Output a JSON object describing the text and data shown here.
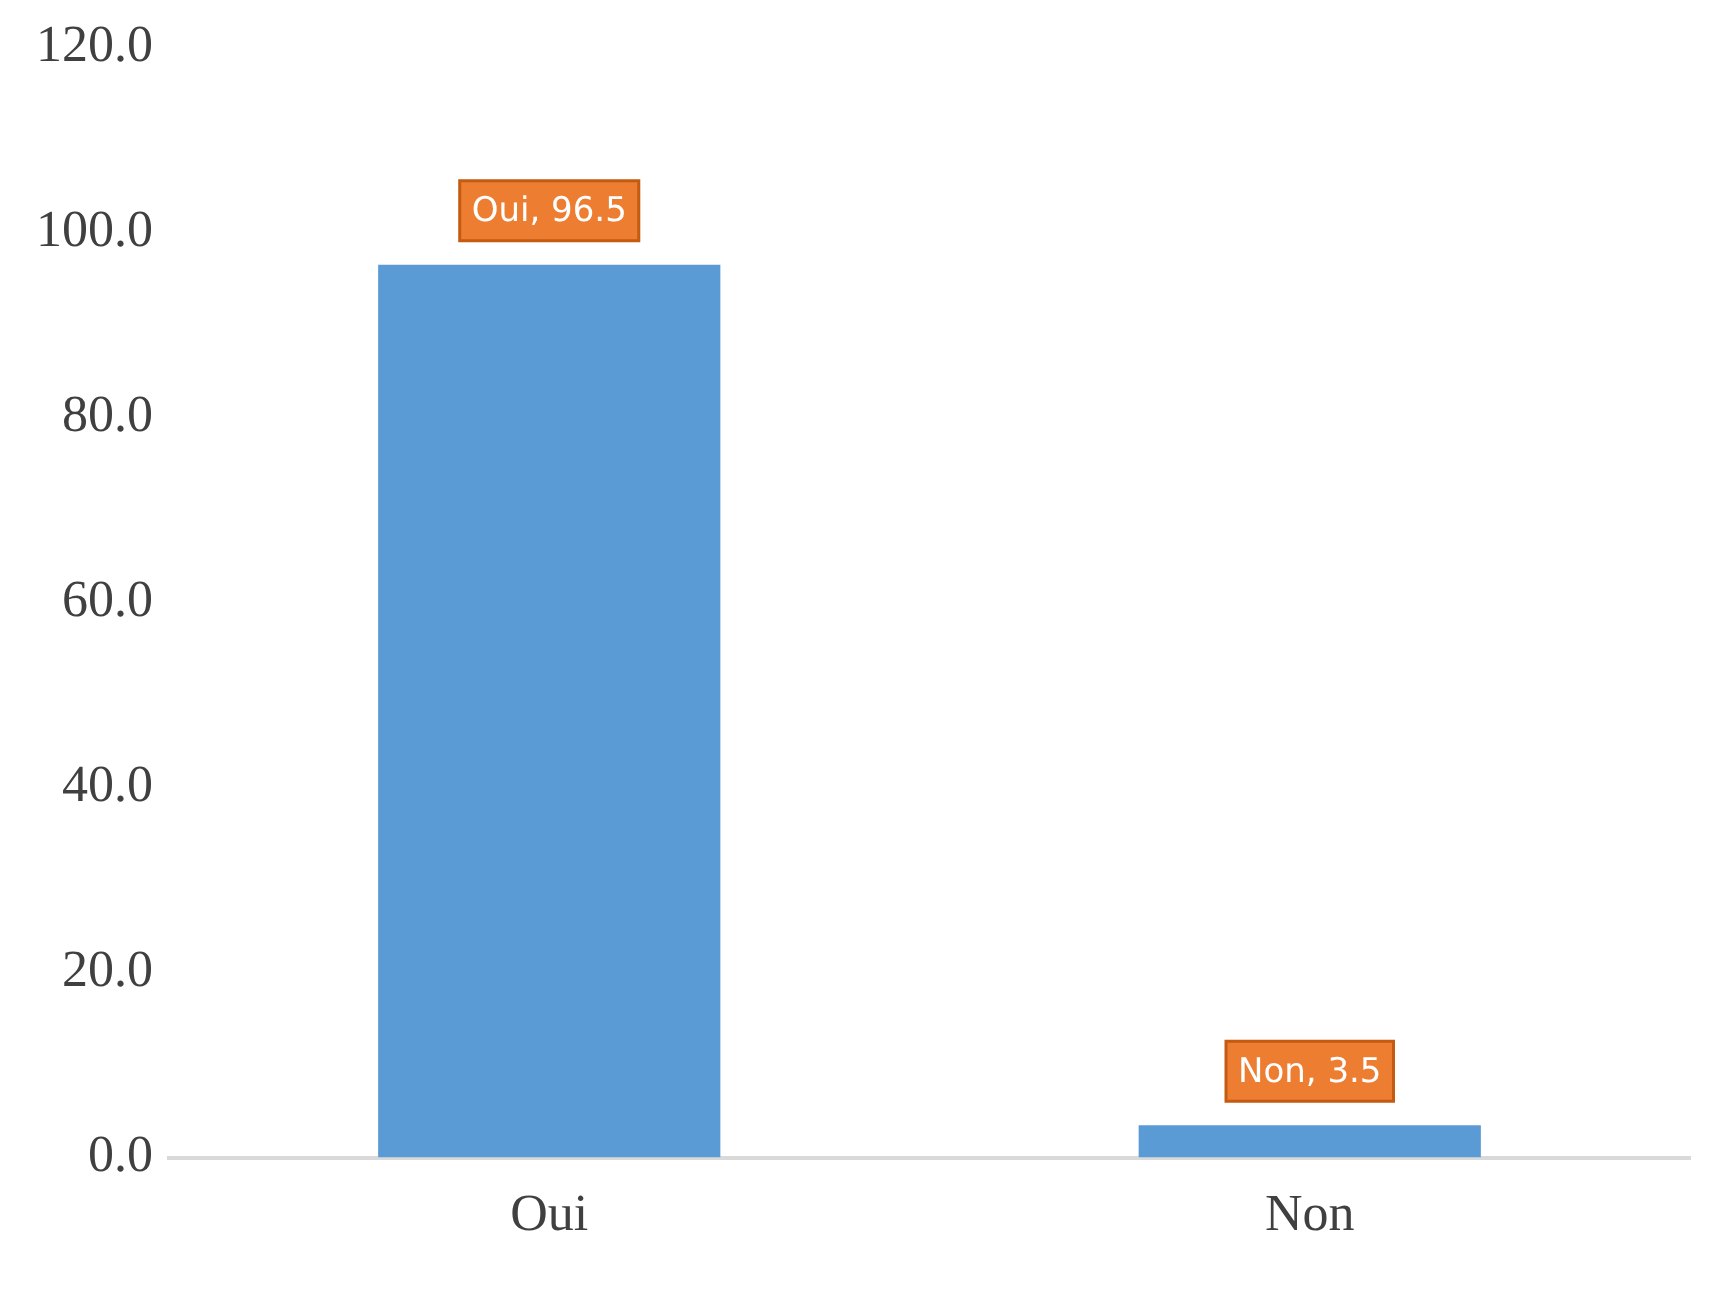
{
  "chart_data": {
    "type": "bar",
    "categories": [
      "Oui",
      "Non"
    ],
    "values": [
      96.5,
      3.5
    ],
    "color": "#5b9bd5",
    "value_labels": [
      "Oui, 96.5",
      "Non, 3.5"
    ],
    "ylim": [
      0,
      120
    ],
    "yticks": [
      {
        "value": 0,
        "label": "0.0"
      },
      {
        "value": 20,
        "label": "20.0"
      },
      {
        "value": 40,
        "label": "40.0"
      },
      {
        "value": 60,
        "label": "60.0"
      },
      {
        "value": 80,
        "label": "80.0"
      },
      {
        "value": 100,
        "label": "100.0"
      },
      {
        "value": 120,
        "label": "120.0"
      }
    ],
    "grid": false,
    "legend": false
  }
}
